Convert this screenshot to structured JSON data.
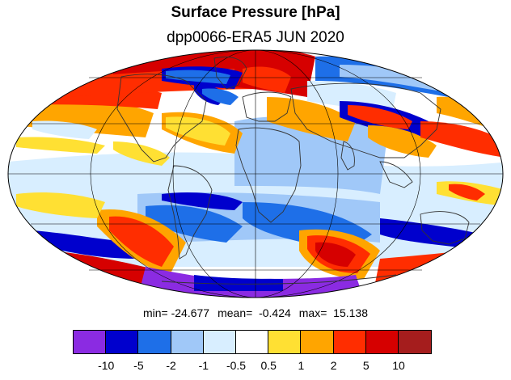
{
  "header": {
    "title": "Surface Pressure [hPa]",
    "subtitle": "dpp0066-ERA5  JUN 2020"
  },
  "stats": {
    "min": "min= -24.677",
    "mean": "mean=  -0.424",
    "max": "max=  15.138"
  },
  "colorbar": {
    "colors": [
      "#8b2be2",
      "#0000cd",
      "#1e6fe8",
      "#a0c8f8",
      "#d8eeff",
      "#ffffff",
      "#ffe033",
      "#ffa500",
      "#ff2d00",
      "#d60000",
      "#a51d1d"
    ],
    "labels": [
      "-10",
      "-5",
      "-2",
      "-1",
      "-0.5",
      "0.5",
      "1",
      "2",
      "5",
      "10"
    ]
  },
  "map": {
    "projection": "Mollweide",
    "variable": "surface pressure difference",
    "units": "hPa"
  }
}
